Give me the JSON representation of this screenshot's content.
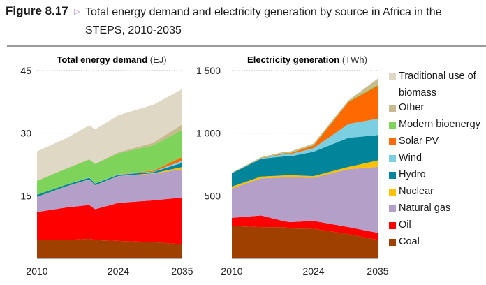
{
  "figure": {
    "label": "Figure 8.17",
    "marker": "triangle-right-icon",
    "title": "Total energy demand and electricity generation by source in Africa in the STEPS, 2010-2035"
  },
  "legend": [
    {
      "name": "Traditional use of biomass",
      "color": "#ded8c4"
    },
    {
      "name": "Other",
      "color": "#c8b98e"
    },
    {
      "name": "Modern bioenergy",
      "color": "#7ed35a"
    },
    {
      "name": "Solar PV",
      "color": "#ff6a00"
    },
    {
      "name": "Wind",
      "color": "#7ccfe0"
    },
    {
      "name": "Hydro",
      "color": "#00859a"
    },
    {
      "name": "Nuclear",
      "color": "#ffc000"
    },
    {
      "name": "Natural gas",
      "color": "#b49fc8"
    },
    {
      "name": "Oil",
      "color": "#ff0000"
    },
    {
      "name": "Coal",
      "color": "#a04000"
    }
  ],
  "chart_data": [
    {
      "type": "area",
      "stacked": true,
      "title": "Total energy demand",
      "unit": "(EJ)",
      "x": [
        2010,
        2015,
        2019,
        2020,
        2024,
        2030,
        2035
      ],
      "xticks": [
        2010,
        2024,
        2035
      ],
      "yticks": [
        {
          "v": 15,
          "label": "15"
        },
        {
          "v": 30,
          "label": "30"
        },
        {
          "v": 45,
          "label": "45"
        }
      ],
      "ylim": [
        0,
        45
      ],
      "xlim": [
        2010,
        2035
      ],
      "grid": "dotted",
      "series": [
        {
          "name": "Coal",
          "values": [
            4.4,
            4.4,
            4.7,
            4.4,
            4.2,
            3.9,
            3.4
          ]
        },
        {
          "name": "Oil",
          "values": [
            6.7,
            7.8,
            8.1,
            7.4,
            9.1,
            10.0,
            11.2
          ]
        },
        {
          "name": "Natural gas",
          "values": [
            3.6,
            5.0,
            6.1,
            5.7,
            6.4,
            6.4,
            6.8
          ]
        },
        {
          "name": "Nuclear",
          "values": [
            0.05,
            0.05,
            0.05,
            0.05,
            0.05,
            0.1,
            0.5
          ]
        },
        {
          "name": "Hydro",
          "values": [
            0.5,
            0.4,
            0.4,
            0.4,
            0.3,
            0.3,
            1.0
          ]
        },
        {
          "name": "Wind",
          "values": [
            0,
            0,
            0.05,
            0.05,
            0.1,
            0.1,
            0.5
          ]
        },
        {
          "name": "Solar PV",
          "values": [
            0,
            0,
            0,
            0,
            0.05,
            0.2,
            0.9
          ]
        },
        {
          "name": "Modern bioenergy",
          "values": [
            3.3,
            3.8,
            4.3,
            4.6,
            5.0,
            6.1,
            6.5
          ]
        },
        {
          "name": "Other",
          "values": [
            0.1,
            0.1,
            0.1,
            0.1,
            0.2,
            0.6,
            1.3
          ]
        },
        {
          "name": "Traditional use of biomass",
          "values": [
            7.0,
            7.2,
            8.1,
            8.2,
            8.9,
            9.1,
            8.5
          ]
        }
      ]
    },
    {
      "type": "area",
      "stacked": true,
      "title": "Electricity generation",
      "unit": "(TWh)",
      "x": [
        2010,
        2015,
        2019,
        2020,
        2024,
        2030,
        2035
      ],
      "xticks": [
        2010,
        2024,
        2035
      ],
      "yticks": [
        {
          "v": 500,
          "label": "500"
        },
        {
          "v": 1000,
          "label": "1 000"
        },
        {
          "v": 1500,
          "label": "1 500"
        }
      ],
      "ylim": [
        0,
        1500
      ],
      "xlim": [
        2010,
        2035
      ],
      "grid": "dotted",
      "series": [
        {
          "name": "Coal",
          "values": [
            259,
            250,
            250,
            240,
            237,
            194,
            148
          ]
        },
        {
          "name": "Oil",
          "values": [
            65,
            93,
            46,
            50,
            63,
            56,
            56
          ]
        },
        {
          "name": "Natural gas",
          "values": [
            235,
            296,
            352,
            360,
            344,
            463,
            527
          ]
        },
        {
          "name": "Nuclear",
          "values": [
            15,
            15,
            15,
            15,
            13,
            18,
            52
          ]
        },
        {
          "name": "Hydro",
          "values": [
            106,
            142,
            152,
            150,
            195,
            232,
            202
          ]
        },
        {
          "name": "Wind",
          "values": [
            0,
            3,
            18,
            18,
            28,
            111,
            130
          ]
        },
        {
          "name": "Solar PV",
          "values": [
            0,
            2,
            6,
            7,
            22,
            176,
            265
          ]
        },
        {
          "name": "Modern bioenergy",
          "values": [
            1,
            2,
            3,
            3,
            4,
            5,
            9
          ]
        },
        {
          "name": "Other",
          "values": [
            4,
            5,
            10,
            10,
            11,
            8,
            46
          ]
        }
      ]
    }
  ]
}
